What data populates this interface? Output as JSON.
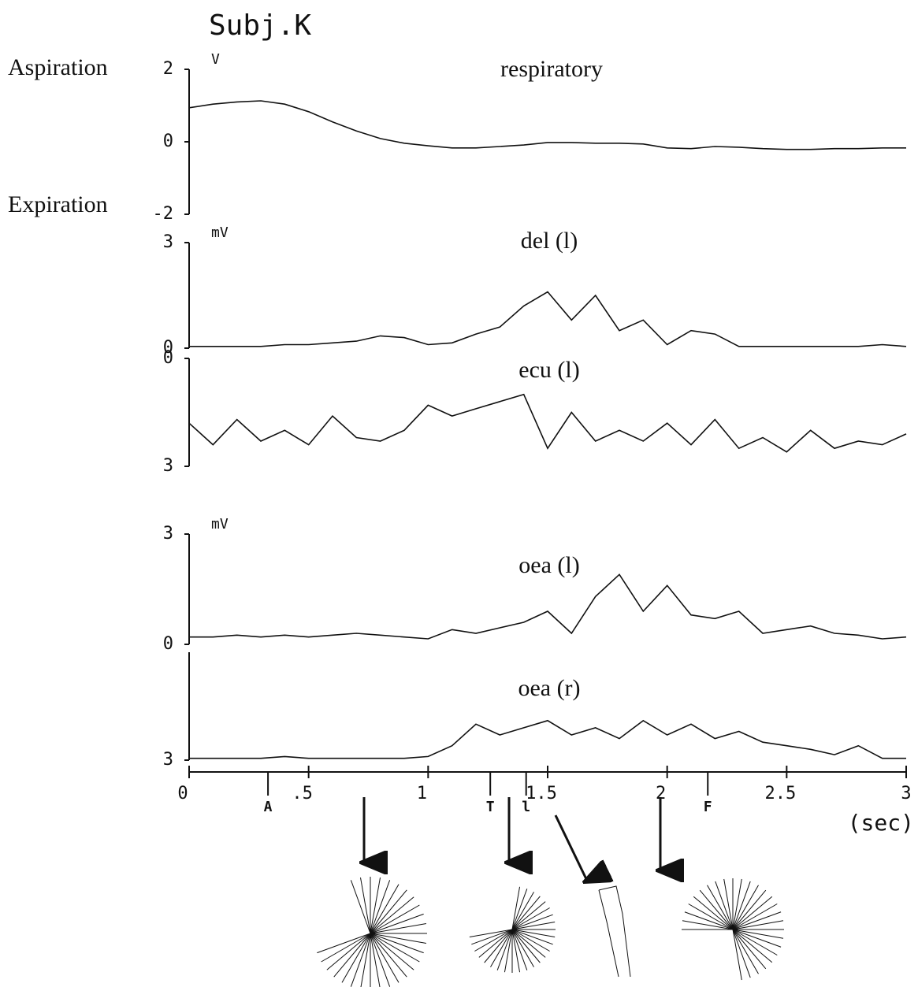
{
  "title": "Subj.K",
  "chart_data": [
    {
      "type": "line",
      "title": "respiratory",
      "unit": "V",
      "upper_label": "Aspiration",
      "lower_label": "Expiration",
      "color": "#111111",
      "xlim": [
        0,
        3
      ],
      "ylim": [
        -2,
        2
      ],
      "yticks": [
        -2,
        0,
        2
      ],
      "x": [
        0,
        0.1,
        0.2,
        0.3,
        0.4,
        0.5,
        0.6,
        0.7,
        0.8,
        0.9,
        1,
        1.1,
        1.2,
        1.3,
        1.4,
        1.5,
        1.6,
        1.7,
        1.8,
        1.9,
        2,
        2.1,
        2.2,
        2.3,
        2.4,
        2.5,
        2.6,
        2.7,
        2.8,
        2.9,
        3
      ],
      "values": [
        0.94,
        1.04,
        1.1,
        1.13,
        1.04,
        0.83,
        0.55,
        0.3,
        0.09,
        -0.04,
        -0.11,
        -0.17,
        -0.17,
        -0.13,
        -0.09,
        -0.02,
        -0.02,
        -0.04,
        -0.04,
        -0.06,
        -0.17,
        -0.19,
        -0.13,
        -0.15,
        -0.19,
        -0.21,
        -0.21,
        -0.19,
        -0.19,
        -0.17,
        -0.17
      ]
    },
    {
      "type": "line",
      "title": "del (l)",
      "unit": "mV",
      "color": "#111111",
      "xlim": [
        0,
        3
      ],
      "ylim": [
        0,
        3
      ],
      "yticks": [
        0,
        3
      ],
      "x": [
        0,
        0.1,
        0.2,
        0.3,
        0.4,
        0.5,
        0.6,
        0.7,
        0.8,
        0.9,
        1,
        1.1,
        1.2,
        1.3,
        1.4,
        1.5,
        1.6,
        1.7,
        1.8,
        1.9,
        2,
        2.1,
        2.2,
        2.3,
        2.4,
        2.5,
        2.6,
        2.7,
        2.8,
        2.9,
        3
      ],
      "values": [
        0.05,
        0.05,
        0.05,
        0.05,
        0.1,
        0.1,
        0.15,
        0.2,
        0.35,
        0.3,
        0.1,
        0.15,
        0.4,
        0.6,
        1.2,
        1.6,
        0.8,
        1.5,
        0.5,
        0.8,
        0.1,
        0.5,
        0.4,
        0.05,
        0.05,
        0.05,
        0.05,
        0.05,
        0.05,
        0.1,
        0.05
      ]
    },
    {
      "type": "line",
      "title": "ecu (l)",
      "color": "#111111",
      "xlim": [
        0,
        3
      ],
      "ylim": [
        3,
        0
      ],
      "yticks": [
        0,
        3
      ],
      "x": [
        0,
        0.1,
        0.2,
        0.3,
        0.4,
        0.5,
        0.6,
        0.7,
        0.8,
        0.9,
        1,
        1.1,
        1.2,
        1.3,
        1.4,
        1.5,
        1.6,
        1.7,
        1.8,
        1.9,
        2,
        2.1,
        2.2,
        2.3,
        2.4,
        2.5,
        2.6,
        2.7,
        2.8,
        2.9,
        3
      ],
      "values": [
        1.8,
        2.4,
        1.7,
        2.3,
        2.0,
        2.4,
        1.6,
        2.2,
        2.3,
        2.0,
        1.3,
        1.6,
        1.4,
        1.2,
        1.0,
        2.5,
        1.5,
        2.3,
        2.0,
        2.3,
        1.8,
        2.4,
        1.7,
        2.5,
        2.2,
        2.6,
        2.0,
        2.5,
        2.3,
        2.4,
        2.1
      ]
    },
    {
      "type": "line",
      "title": "oea (l)",
      "unit": "mV",
      "color": "#111111",
      "xlim": [
        0,
        3
      ],
      "ylim": [
        0,
        3
      ],
      "yticks": [
        0,
        3
      ],
      "x": [
        0,
        0.1,
        0.2,
        0.3,
        0.4,
        0.5,
        0.6,
        0.7,
        0.8,
        0.9,
        1,
        1.1,
        1.2,
        1.3,
        1.4,
        1.5,
        1.6,
        1.7,
        1.8,
        1.9,
        2,
        2.1,
        2.2,
        2.3,
        2.4,
        2.5,
        2.6,
        2.7,
        2.8,
        2.9,
        3
      ],
      "values": [
        0.2,
        0.2,
        0.25,
        0.2,
        0.25,
        0.2,
        0.25,
        0.3,
        0.25,
        0.2,
        0.15,
        0.4,
        0.3,
        0.45,
        0.6,
        0.9,
        0.3,
        1.3,
        1.9,
        0.9,
        1.6,
        0.8,
        0.7,
        0.9,
        0.3,
        0.4,
        0.5,
        0.3,
        0.25,
        0.15,
        0.2
      ]
    },
    {
      "type": "line",
      "title": "oea (r)",
      "color": "#111111",
      "xlim": [
        0,
        3
      ],
      "ylim": [
        3,
        0
      ],
      "yticks": [
        3
      ],
      "xticks": [
        0,
        {
          "value": 0.5,
          "label": ".5"
        },
        1,
        1.5,
        2,
        2.5,
        3
      ],
      "xlabel": "(sec)",
      "markers": [
        {
          "x": 0.33,
          "label": "A"
        },
        {
          "x": 1.26,
          "label": "T"
        },
        {
          "x": 1.41,
          "label": "l"
        },
        {
          "x": 2.17,
          "label": "F"
        }
      ],
      "x": [
        0,
        0.1,
        0.2,
        0.3,
        0.4,
        0.5,
        0.6,
        0.7,
        0.8,
        0.9,
        1,
        1.1,
        1.2,
        1.3,
        1.4,
        1.5,
        1.6,
        1.7,
        1.8,
        1.9,
        2,
        2.1,
        2.2,
        2.3,
        2.4,
        2.5,
        2.6,
        2.7,
        2.8,
        2.9,
        3
      ],
      "values": [
        2.95,
        2.95,
        2.95,
        2.95,
        2.9,
        2.95,
        2.95,
        2.95,
        2.95,
        2.95,
        2.9,
        2.6,
        2.0,
        2.3,
        2.1,
        1.9,
        2.3,
        2.1,
        2.4,
        1.9,
        2.3,
        2.0,
        2.4,
        2.2,
        2.5,
        2.6,
        2.7,
        2.85,
        2.6,
        2.95,
        2.95
      ]
    }
  ]
}
